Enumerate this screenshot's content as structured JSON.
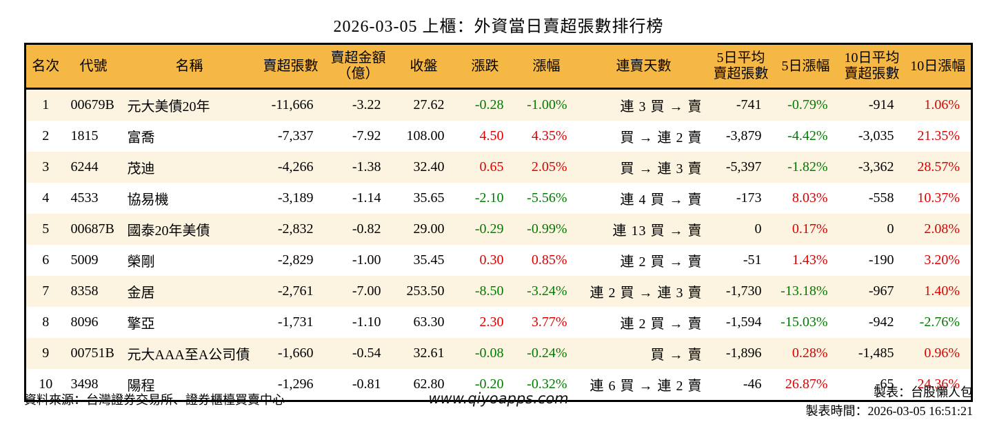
{
  "title": "2026-03-05 上櫃：外資當日賣超張數排行榜",
  "colors": {
    "header_bg": "#f6b845",
    "row_alt_bg": "#fcf4e0",
    "row_bg": "#ffffff",
    "up_red": "#dd0000",
    "down_green": "#007c00",
    "border": "#000000"
  },
  "chart_data": {
    "type": "table",
    "title": "2026-03-05 上櫃：外資當日賣超張數排行榜",
    "headers": [
      "名次",
      "代號",
      "名稱",
      "賣超張數",
      "賣超金額\n（億）",
      "收盤",
      "漲跌",
      "漲幅",
      "連賣天數",
      "5日平均\n賣超張數",
      "5日漲幅",
      "10日平均\n賣超張數",
      "10日漲幅"
    ],
    "rows": [
      {
        "rank": "1",
        "code": "00679B",
        "name": "元大美債20年",
        "sell_shares": "-11,666",
        "sell_amount": "-3.22",
        "close": "27.62",
        "change": "-0.28",
        "change_pct": "-1.00%",
        "streak": "連 3 買 → 賣",
        "avg5": "-741",
        "pct5": "-0.79%",
        "avg10": "-914",
        "pct10": "1.06%"
      },
      {
        "rank": "2",
        "code": "1815",
        "name": "富喬",
        "sell_shares": "-7,337",
        "sell_amount": "-7.92",
        "close": "108.00",
        "change": "4.50",
        "change_pct": "4.35%",
        "streak": "買 → 連 2 賣",
        "avg5": "-3,879",
        "pct5": "-4.42%",
        "avg10": "-3,035",
        "pct10": "21.35%"
      },
      {
        "rank": "3",
        "code": "6244",
        "name": "茂迪",
        "sell_shares": "-4,266",
        "sell_amount": "-1.38",
        "close": "32.40",
        "change": "0.65",
        "change_pct": "2.05%",
        "streak": "買 → 連 3 賣",
        "avg5": "-5,397",
        "pct5": "-1.82%",
        "avg10": "-3,362",
        "pct10": "28.57%"
      },
      {
        "rank": "4",
        "code": "4533",
        "name": "協易機",
        "sell_shares": "-3,189",
        "sell_amount": "-1.14",
        "close": "35.65",
        "change": "-2.10",
        "change_pct": "-5.56%",
        "streak": "連 4 買 → 賣",
        "avg5": "-173",
        "pct5": "8.03%",
        "avg10": "-558",
        "pct10": "10.37%"
      },
      {
        "rank": "5",
        "code": "00687B",
        "name": "國泰20年美債",
        "sell_shares": "-2,832",
        "sell_amount": "-0.82",
        "close": "29.00",
        "change": "-0.29",
        "change_pct": "-0.99%",
        "streak": "連 13 買 → 賣",
        "avg5": "0",
        "pct5": "0.17%",
        "avg10": "0",
        "pct10": "2.08%"
      },
      {
        "rank": "6",
        "code": "5009",
        "name": "榮剛",
        "sell_shares": "-2,829",
        "sell_amount": "-1.00",
        "close": "35.45",
        "change": "0.30",
        "change_pct": "0.85%",
        "streak": "連 2 買 → 賣",
        "avg5": "-51",
        "pct5": "1.43%",
        "avg10": "-190",
        "pct10": "3.20%"
      },
      {
        "rank": "7",
        "code": "8358",
        "name": "金居",
        "sell_shares": "-2,761",
        "sell_amount": "-7.00",
        "close": "253.50",
        "change": "-8.50",
        "change_pct": "-3.24%",
        "streak": "連 2 買 → 連 3 賣",
        "avg5": "-1,730",
        "pct5": "-13.18%",
        "avg10": "-967",
        "pct10": "1.40%"
      },
      {
        "rank": "8",
        "code": "8096",
        "name": "擎亞",
        "sell_shares": "-1,731",
        "sell_amount": "-1.10",
        "close": "63.30",
        "change": "2.30",
        "change_pct": "3.77%",
        "streak": "連 2 買 → 賣",
        "avg5": "-1,594",
        "pct5": "-15.03%",
        "avg10": "-942",
        "pct10": "-2.76%"
      },
      {
        "rank": "9",
        "code": "00751B",
        "name": "元大AAA至A公司債",
        "sell_shares": "-1,660",
        "sell_amount": "-0.54",
        "close": "32.61",
        "change": "-0.08",
        "change_pct": "-0.24%",
        "streak": "買 → 賣",
        "avg5": "-1,896",
        "pct5": "0.28%",
        "avg10": "-1,485",
        "pct10": "0.96%"
      },
      {
        "rank": "10",
        "code": "3498",
        "name": "陽程",
        "sell_shares": "-1,296",
        "sell_amount": "-0.81",
        "close": "62.80",
        "change": "-0.20",
        "change_pct": "-0.32%",
        "streak": "連 6 買 → 連 2 賣",
        "avg5": "-46",
        "pct5": "26.87%",
        "avg10": "-65",
        "pct10": "24.36%"
      }
    ]
  },
  "footer": {
    "source": "資料來源：台灣證券交易所、證券櫃檯買賣中心",
    "site": "www.qiyoapps.com",
    "maker": "製表：台股懶人包",
    "timestamp": "製表時間：2026-03-05 16:51:21"
  }
}
